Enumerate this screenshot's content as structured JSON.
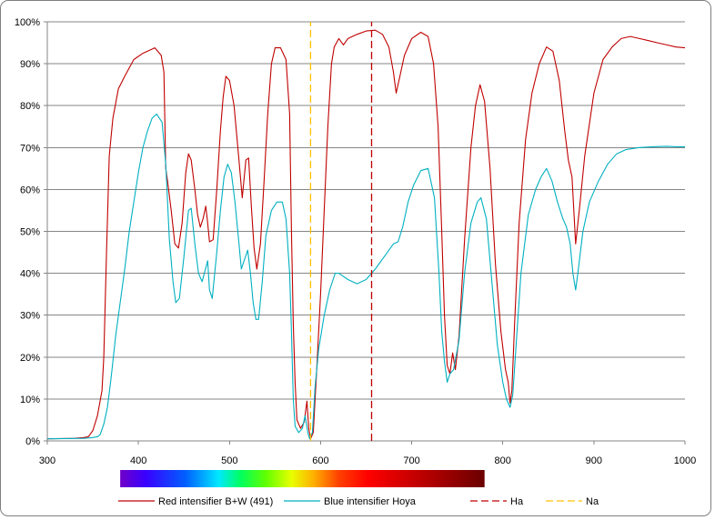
{
  "chart_data": {
    "type": "line",
    "x_range": [
      300,
      1000
    ],
    "y_range": [
      0,
      100
    ],
    "x_ticks": [
      "300",
      "400",
      "500",
      "600",
      "700",
      "800",
      "900",
      "1000"
    ],
    "x_tick_values": [
      300,
      400,
      500,
      600,
      700,
      800,
      900,
      1000
    ],
    "y_ticks": [
      "0%",
      "10%",
      "20%",
      "30%",
      "40%",
      "50%",
      "60%",
      "70%",
      "80%",
      "90%",
      "100%"
    ],
    "y_tick_values": [
      0,
      10,
      20,
      30,
      40,
      50,
      60,
      70,
      80,
      90,
      100
    ],
    "grid": "horizontal",
    "legend_position": "bottom",
    "spectrum_bar": {
      "from": 380,
      "to": 780
    },
    "series": [
      {
        "name": "Red intensifier B+W (491)",
        "color": "#c00000",
        "style": "solid",
        "points": [
          [
            300,
            0.5
          ],
          [
            330,
            0.6
          ],
          [
            340,
            0.8
          ],
          [
            345,
            1
          ],
          [
            350,
            2.5
          ],
          [
            355,
            6
          ],
          [
            360,
            12
          ],
          [
            362,
            20
          ],
          [
            365,
            45
          ],
          [
            368,
            68
          ],
          [
            372,
            77
          ],
          [
            378,
            84
          ],
          [
            385,
            87
          ],
          [
            395,
            91
          ],
          [
            405,
            92.5
          ],
          [
            418,
            93.8
          ],
          [
            425,
            92
          ],
          [
            428,
            88
          ],
          [
            430,
            65
          ],
          [
            432,
            62
          ],
          [
            436,
            55
          ],
          [
            440,
            47
          ],
          [
            444,
            46
          ],
          [
            448,
            52
          ],
          [
            452,
            64
          ],
          [
            455,
            68.5
          ],
          [
            458,
            67
          ],
          [
            462,
            60
          ],
          [
            465,
            54
          ],
          [
            468,
            51
          ],
          [
            471,
            53
          ],
          [
            474,
            56
          ],
          [
            476,
            52
          ],
          [
            478,
            47.5
          ],
          [
            482,
            48
          ],
          [
            486,
            60
          ],
          [
            490,
            74
          ],
          [
            493,
            82
          ],
          [
            496,
            87
          ],
          [
            500,
            86
          ],
          [
            505,
            80
          ],
          [
            510,
            68
          ],
          [
            514,
            58
          ],
          [
            518,
            67
          ],
          [
            521,
            67.5
          ],
          [
            524,
            56
          ],
          [
            527,
            46
          ],
          [
            530,
            41
          ],
          [
            534,
            47
          ],
          [
            538,
            62
          ],
          [
            542,
            78
          ],
          [
            546,
            90
          ],
          [
            550,
            93.8
          ],
          [
            556,
            93.8
          ],
          [
            562,
            91
          ],
          [
            566,
            78
          ],
          [
            568,
            50
          ],
          [
            570,
            28
          ],
          [
            572,
            14
          ],
          [
            574,
            5
          ],
          [
            578,
            3
          ],
          [
            582,
            4.5
          ],
          [
            585,
            9.5
          ],
          [
            587,
            3
          ],
          [
            589,
            0.5
          ],
          [
            592,
            2
          ],
          [
            596,
            18
          ],
          [
            600,
            35
          ],
          [
            604,
            55
          ],
          [
            608,
            75
          ],
          [
            612,
            90
          ],
          [
            615,
            94
          ],
          [
            620,
            96
          ],
          [
            625,
            94.5
          ],
          [
            630,
            96
          ],
          [
            640,
            97
          ],
          [
            650,
            97.8
          ],
          [
            660,
            98
          ],
          [
            668,
            97
          ],
          [
            675,
            94
          ],
          [
            680,
            88
          ],
          [
            683,
            83
          ],
          [
            686,
            86
          ],
          [
            692,
            92
          ],
          [
            700,
            96
          ],
          [
            710,
            97.5
          ],
          [
            718,
            96.5
          ],
          [
            724,
            90
          ],
          [
            729,
            75
          ],
          [
            733,
            50
          ],
          [
            736,
            30
          ],
          [
            739,
            18
          ],
          [
            742,
            16
          ],
          [
            745,
            21
          ],
          [
            748,
            17
          ],
          [
            752,
            25
          ],
          [
            758,
            48
          ],
          [
            765,
            70
          ],
          [
            770,
            80
          ],
          [
            775,
            85
          ],
          [
            780,
            81
          ],
          [
            786,
            65
          ],
          [
            792,
            42
          ],
          [
            798,
            26
          ],
          [
            803,
            17
          ],
          [
            806,
            14
          ],
          [
            808,
            9
          ],
          [
            810,
            12
          ],
          [
            813,
            28
          ],
          [
            818,
            52
          ],
          [
            825,
            72
          ],
          [
            832,
            83
          ],
          [
            840,
            90
          ],
          [
            848,
            94
          ],
          [
            855,
            93
          ],
          [
            862,
            86
          ],
          [
            868,
            74
          ],
          [
            872,
            67
          ],
          [
            876,
            63
          ],
          [
            878,
            55
          ],
          [
            880,
            47
          ],
          [
            884,
            55
          ],
          [
            890,
            68
          ],
          [
            900,
            83
          ],
          [
            910,
            91
          ],
          [
            920,
            94
          ],
          [
            930,
            96
          ],
          [
            940,
            96.5
          ],
          [
            950,
            96
          ],
          [
            960,
            95.5
          ],
          [
            970,
            95
          ],
          [
            980,
            94.5
          ],
          [
            990,
            94
          ],
          [
            1000,
            93.8
          ]
        ]
      },
      {
        "name": "Blue intensifier Hoya",
        "color": "#00b0c0",
        "style": "solid",
        "points": [
          [
            300,
            0.5
          ],
          [
            340,
            0.6
          ],
          [
            350,
            0.8
          ],
          [
            355,
            1
          ],
          [
            358,
            1.5
          ],
          [
            362,
            4
          ],
          [
            366,
            8
          ],
          [
            370,
            15
          ],
          [
            375,
            25
          ],
          [
            380,
            33
          ],
          [
            385,
            41
          ],
          [
            390,
            50
          ],
          [
            395,
            57
          ],
          [
            400,
            64
          ],
          [
            405,
            70
          ],
          [
            410,
            74
          ],
          [
            415,
            77
          ],
          [
            420,
            78
          ],
          [
            426,
            76
          ],
          [
            430,
            66
          ],
          [
            434,
            48
          ],
          [
            438,
            38
          ],
          [
            441,
            33
          ],
          [
            445,
            34
          ],
          [
            450,
            44
          ],
          [
            455,
            55
          ],
          [
            458,
            55.5
          ],
          [
            462,
            47
          ],
          [
            466,
            40
          ],
          [
            470,
            38
          ],
          [
            473,
            40.5
          ],
          [
            476,
            43
          ],
          [
            478,
            36
          ],
          [
            481,
            34
          ],
          [
            486,
            45
          ],
          [
            490,
            55
          ],
          [
            494,
            63
          ],
          [
            498,
            66
          ],
          [
            502,
            64
          ],
          [
            506,
            57
          ],
          [
            510,
            48
          ],
          [
            513,
            41
          ],
          [
            516,
            43
          ],
          [
            520,
            45.5
          ],
          [
            523,
            40
          ],
          [
            526,
            33
          ],
          [
            529,
            29
          ],
          [
            532,
            29
          ],
          [
            536,
            38
          ],
          [
            540,
            49
          ],
          [
            546,
            55
          ],
          [
            552,
            57
          ],
          [
            558,
            57
          ],
          [
            562,
            53
          ],
          [
            566,
            40
          ],
          [
            568,
            26
          ],
          [
            570,
            10
          ],
          [
            572,
            3.5
          ],
          [
            576,
            2
          ],
          [
            580,
            3
          ],
          [
            583,
            6
          ],
          [
            586,
            2
          ],
          [
            588,
            0.5
          ],
          [
            591,
            2
          ],
          [
            594,
            13
          ],
          [
            598,
            22
          ],
          [
            604,
            30
          ],
          [
            610,
            36
          ],
          [
            616,
            40
          ],
          [
            620,
            40
          ],
          [
            630,
            38.5
          ],
          [
            640,
            37.5
          ],
          [
            650,
            38.5
          ],
          [
            660,
            41
          ],
          [
            670,
            44
          ],
          [
            680,
            47
          ],
          [
            685,
            47.5
          ],
          [
            690,
            51
          ],
          [
            696,
            57
          ],
          [
            702,
            61
          ],
          [
            710,
            64.5
          ],
          [
            718,
            65
          ],
          [
            725,
            58
          ],
          [
            730,
            40
          ],
          [
            733,
            26
          ],
          [
            736,
            19
          ],
          [
            739,
            14
          ],
          [
            742,
            16
          ],
          [
            746,
            17
          ],
          [
            752,
            24
          ],
          [
            758,
            40
          ],
          [
            765,
            52
          ],
          [
            772,
            57
          ],
          [
            776,
            58
          ],
          [
            782,
            53
          ],
          [
            788,
            38
          ],
          [
            794,
            23
          ],
          [
            800,
            14
          ],
          [
            804,
            10
          ],
          [
            808,
            8
          ],
          [
            811,
            11
          ],
          [
            815,
            24
          ],
          [
            820,
            40
          ],
          [
            828,
            54
          ],
          [
            836,
            60
          ],
          [
            842,
            63
          ],
          [
            848,
            65
          ],
          [
            854,
            62
          ],
          [
            860,
            57
          ],
          [
            866,
            53
          ],
          [
            870,
            51
          ],
          [
            874,
            47
          ],
          [
            877,
            40
          ],
          [
            880,
            36
          ],
          [
            883,
            41
          ],
          [
            888,
            50
          ],
          [
            895,
            57
          ],
          [
            905,
            62
          ],
          [
            915,
            66
          ],
          [
            925,
            68.5
          ],
          [
            935,
            69.5
          ],
          [
            950,
            70
          ],
          [
            965,
            70.2
          ],
          [
            980,
            70.3
          ],
          [
            990,
            70.2
          ],
          [
            1000,
            70.2
          ]
        ]
      },
      {
        "name": "Ha",
        "color": "#c00000",
        "style": "dashed",
        "points": [
          [
            656,
            0
          ],
          [
            656,
            100
          ]
        ]
      },
      {
        "name": "Na",
        "color": "#ffc000",
        "style": "dashed",
        "points": [
          [
            589,
            0
          ],
          [
            589,
            100
          ]
        ]
      }
    ]
  }
}
